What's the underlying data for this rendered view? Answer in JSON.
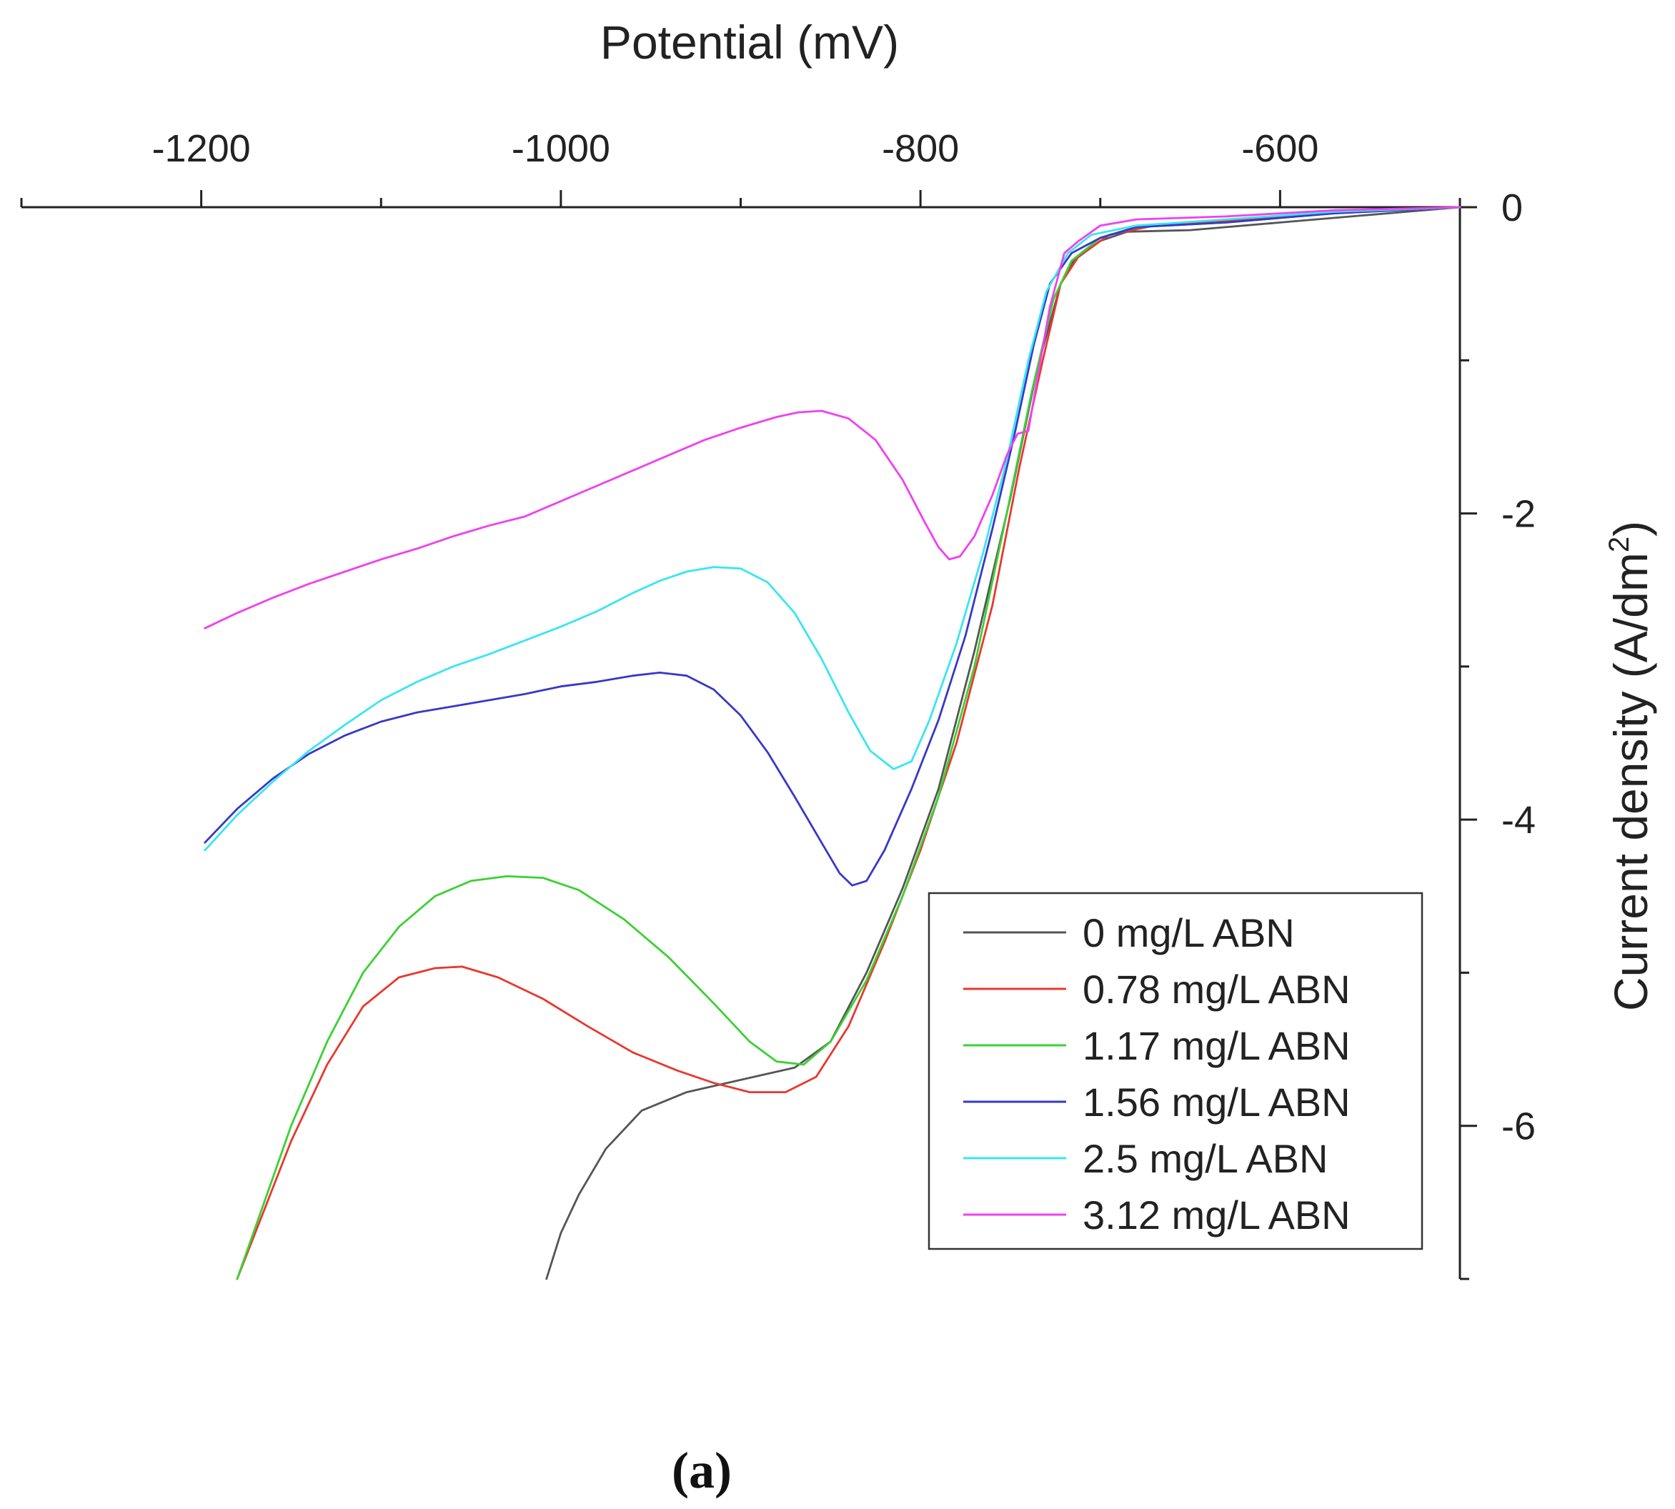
{
  "chart_data": {
    "type": "line",
    "title": "",
    "panel_label": "(a)",
    "xlabel": "Potential (mV)",
    "ylabel": "Current density (A/dm",
    "ylabel_superscript": "2",
    "ylabel_suffix": ")",
    "xlim": [
      -1300,
      -500
    ],
    "ylim": [
      -7,
      0
    ],
    "x_ticks": [
      -1200,
      -1000,
      -800,
      -600
    ],
    "x_minor_ticks": [
      -1300,
      -1100,
      -900,
      -700,
      -500
    ],
    "y_ticks": [
      0,
      -2,
      -4,
      -6
    ],
    "y_minor_ticks": [
      -1,
      -3,
      -5,
      -7
    ],
    "x_tick_labels": [
      "-1200",
      "-1000",
      "-800",
      "-600"
    ],
    "y_tick_labels": [
      "0",
      "-2",
      "-4",
      "-6"
    ],
    "x_axis_position": "top",
    "y_axis_position": "right",
    "legend_position": "bottom-right",
    "grid": false,
    "series": [
      {
        "name": "0 mg/L ABN",
        "color": "#555555",
        "points": [
          [
            -1008,
            -7.0
          ],
          [
            -1000,
            -6.7
          ],
          [
            -990,
            -6.45
          ],
          [
            -975,
            -6.15
          ],
          [
            -955,
            -5.9
          ],
          [
            -930,
            -5.78
          ],
          [
            -900,
            -5.7
          ],
          [
            -870,
            -5.62
          ],
          [
            -850,
            -5.45
          ],
          [
            -830,
            -5.0
          ],
          [
            -810,
            -4.45
          ],
          [
            -790,
            -3.8
          ],
          [
            -770,
            -2.9
          ],
          [
            -750,
            -1.9
          ],
          [
            -735,
            -1.05
          ],
          [
            -722,
            -0.5
          ],
          [
            -715,
            -0.35
          ],
          [
            -700,
            -0.22
          ],
          [
            -685,
            -0.16
          ],
          [
            -650,
            -0.15
          ],
          [
            -600,
            -0.1
          ],
          [
            -550,
            -0.05
          ],
          [
            -500,
            0.0
          ]
        ]
      },
      {
        "name": "0.78 mg/L ABN",
        "color": "#e8382e",
        "points": [
          [
            -1180,
            -7.0
          ],
          [
            -1165,
            -6.55
          ],
          [
            -1150,
            -6.1
          ],
          [
            -1130,
            -5.6
          ],
          [
            -1110,
            -5.22
          ],
          [
            -1090,
            -5.03
          ],
          [
            -1070,
            -4.97
          ],
          [
            -1055,
            -4.96
          ],
          [
            -1035,
            -5.03
          ],
          [
            -1010,
            -5.17
          ],
          [
            -985,
            -5.35
          ],
          [
            -960,
            -5.52
          ],
          [
            -935,
            -5.64
          ],
          [
            -915,
            -5.72
          ],
          [
            -895,
            -5.78
          ],
          [
            -875,
            -5.78
          ],
          [
            -858,
            -5.68
          ],
          [
            -840,
            -5.35
          ],
          [
            -820,
            -4.8
          ],
          [
            -800,
            -4.2
          ],
          [
            -780,
            -3.5
          ],
          [
            -760,
            -2.6
          ],
          [
            -745,
            -1.7
          ],
          [
            -732,
            -1.0
          ],
          [
            -722,
            -0.5
          ],
          [
            -712,
            -0.32
          ],
          [
            -695,
            -0.18
          ],
          [
            -670,
            -0.12
          ],
          [
            -620,
            -0.08
          ],
          [
            -560,
            -0.03
          ],
          [
            -500,
            0.0
          ]
        ]
      },
      {
        "name": "1.17 mg/L ABN",
        "color": "#3bd133",
        "points": [
          [
            -1180,
            -7.0
          ],
          [
            -1165,
            -6.5
          ],
          [
            -1150,
            -6.0
          ],
          [
            -1130,
            -5.45
          ],
          [
            -1110,
            -5.0
          ],
          [
            -1090,
            -4.7
          ],
          [
            -1070,
            -4.5
          ],
          [
            -1050,
            -4.4
          ],
          [
            -1030,
            -4.37
          ],
          [
            -1010,
            -4.38
          ],
          [
            -990,
            -4.46
          ],
          [
            -965,
            -4.65
          ],
          [
            -940,
            -4.9
          ],
          [
            -915,
            -5.2
          ],
          [
            -895,
            -5.45
          ],
          [
            -880,
            -5.58
          ],
          [
            -865,
            -5.6
          ],
          [
            -850,
            -5.45
          ],
          [
            -830,
            -5.05
          ],
          [
            -810,
            -4.5
          ],
          [
            -790,
            -3.85
          ],
          [
            -770,
            -3.0
          ],
          [
            -752,
            -2.0
          ],
          [
            -738,
            -1.2
          ],
          [
            -726,
            -0.6
          ],
          [
            -716,
            -0.35
          ],
          [
            -700,
            -0.2
          ],
          [
            -680,
            -0.13
          ],
          [
            -630,
            -0.1
          ],
          [
            -570,
            -0.04
          ],
          [
            -500,
            0.0
          ]
        ]
      },
      {
        "name": "1.56 mg/L ABN",
        "color": "#3838c8",
        "points": [
          [
            -1198,
            -4.15
          ],
          [
            -1180,
            -3.93
          ],
          [
            -1160,
            -3.73
          ],
          [
            -1140,
            -3.57
          ],
          [
            -1120,
            -3.45
          ],
          [
            -1100,
            -3.36
          ],
          [
            -1080,
            -3.3
          ],
          [
            -1060,
            -3.26
          ],
          [
            -1040,
            -3.22
          ],
          [
            -1020,
            -3.18
          ],
          [
            -1000,
            -3.13
          ],
          [
            -980,
            -3.1
          ],
          [
            -960,
            -3.06
          ],
          [
            -945,
            -3.04
          ],
          [
            -930,
            -3.06
          ],
          [
            -915,
            -3.15
          ],
          [
            -900,
            -3.32
          ],
          [
            -885,
            -3.56
          ],
          [
            -870,
            -3.85
          ],
          [
            -855,
            -4.15
          ],
          [
            -845,
            -4.35
          ],
          [
            -838,
            -4.43
          ],
          [
            -830,
            -4.4
          ],
          [
            -820,
            -4.2
          ],
          [
            -805,
            -3.8
          ],
          [
            -790,
            -3.35
          ],
          [
            -775,
            -2.8
          ],
          [
            -760,
            -2.1
          ],
          [
            -748,
            -1.5
          ],
          [
            -737,
            -0.9
          ],
          [
            -728,
            -0.5
          ],
          [
            -716,
            -0.3
          ],
          [
            -700,
            -0.2
          ],
          [
            -680,
            -0.13
          ],
          [
            -630,
            -0.1
          ],
          [
            -570,
            -0.04
          ],
          [
            -500,
            0.0
          ]
        ]
      },
      {
        "name": "2.5 mg/L ABN",
        "color": "#39e6f0",
        "points": [
          [
            -1198,
            -4.2
          ],
          [
            -1180,
            -3.97
          ],
          [
            -1160,
            -3.75
          ],
          [
            -1140,
            -3.55
          ],
          [
            -1120,
            -3.38
          ],
          [
            -1100,
            -3.22
          ],
          [
            -1080,
            -3.1
          ],
          [
            -1060,
            -3.0
          ],
          [
            -1040,
            -2.92
          ],
          [
            -1020,
            -2.83
          ],
          [
            -1000,
            -2.74
          ],
          [
            -980,
            -2.64
          ],
          [
            -960,
            -2.52
          ],
          [
            -945,
            -2.44
          ],
          [
            -930,
            -2.38
          ],
          [
            -915,
            -2.35
          ],
          [
            -900,
            -2.36
          ],
          [
            -885,
            -2.45
          ],
          [
            -870,
            -2.65
          ],
          [
            -855,
            -2.95
          ],
          [
            -840,
            -3.3
          ],
          [
            -828,
            -3.55
          ],
          [
            -815,
            -3.67
          ],
          [
            -805,
            -3.62
          ],
          [
            -795,
            -3.35
          ],
          [
            -780,
            -2.85
          ],
          [
            -765,
            -2.25
          ],
          [
            -752,
            -1.65
          ],
          [
            -740,
            -1.0
          ],
          [
            -730,
            -0.55
          ],
          [
            -718,
            -0.3
          ],
          [
            -705,
            -0.18
          ],
          [
            -680,
            -0.12
          ],
          [
            -630,
            -0.08
          ],
          [
            -570,
            -0.03
          ],
          [
            -500,
            0.0
          ]
        ]
      },
      {
        "name": "3.12 mg/L ABN",
        "color": "#f040f0",
        "points": [
          [
            -1198,
            -2.75
          ],
          [
            -1180,
            -2.65
          ],
          [
            -1160,
            -2.55
          ],
          [
            -1140,
            -2.46
          ],
          [
            -1120,
            -2.38
          ],
          [
            -1100,
            -2.3
          ],
          [
            -1080,
            -2.23
          ],
          [
            -1060,
            -2.15
          ],
          [
            -1040,
            -2.08
          ],
          [
            -1020,
            -2.02
          ],
          [
            -1000,
            -1.92
          ],
          [
            -980,
            -1.82
          ],
          [
            -960,
            -1.72
          ],
          [
            -940,
            -1.62
          ],
          [
            -920,
            -1.52
          ],
          [
            -900,
            -1.44
          ],
          [
            -880,
            -1.37
          ],
          [
            -868,
            -1.34
          ],
          [
            -855,
            -1.33
          ],
          [
            -840,
            -1.38
          ],
          [
            -825,
            -1.52
          ],
          [
            -810,
            -1.78
          ],
          [
            -798,
            -2.05
          ],
          [
            -790,
            -2.22
          ],
          [
            -784,
            -2.3
          ],
          [
            -778,
            -2.28
          ],
          [
            -770,
            -2.15
          ],
          [
            -760,
            -1.88
          ],
          [
            -752,
            -1.62
          ],
          [
            -746,
            -1.48
          ],
          [
            -740,
            -1.46
          ],
          [
            -734,
            -1.05
          ],
          [
            -728,
            -0.65
          ],
          [
            -720,
            -0.3
          ],
          [
            -712,
            -0.22
          ],
          [
            -700,
            -0.12
          ],
          [
            -680,
            -0.08
          ],
          [
            -630,
            -0.06
          ],
          [
            -570,
            -0.02
          ],
          [
            -500,
            0.0
          ]
        ]
      }
    ]
  }
}
